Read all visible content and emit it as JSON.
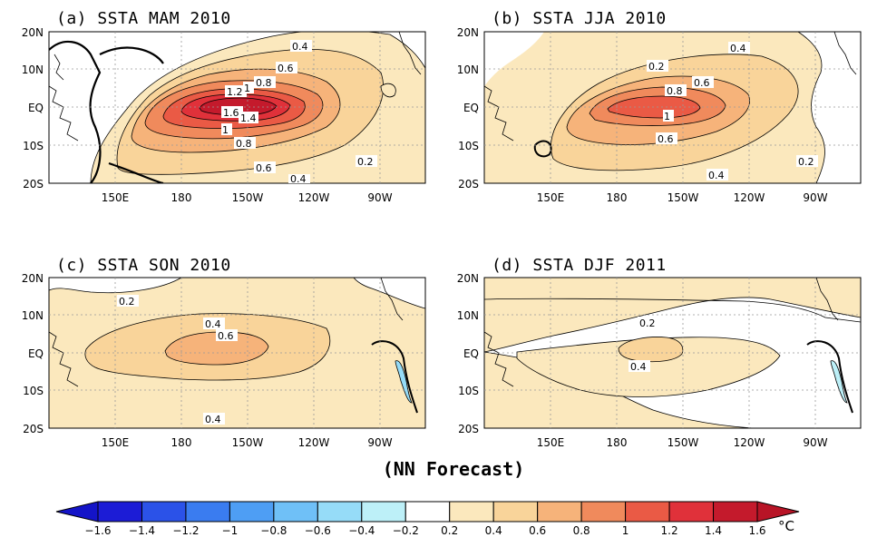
{
  "figure": {
    "caption": "(NN Forecast)",
    "unit": "°C"
  },
  "axes": {
    "lat_ticks": [
      "20N",
      "10N",
      "EQ",
      "10S",
      "20S"
    ],
    "lon_ticks": [
      "150E",
      "180",
      "150W",
      "120W",
      "90W"
    ],
    "lat_range": [
      -20,
      20
    ],
    "lon_range": [
      120,
      290
    ]
  },
  "panels": [
    {
      "title": "(a) SSTA  MAM 2010",
      "peak_value": 1.6,
      "contour_labels": [
        "0.4",
        "0.6",
        "0.8",
        "1.2",
        "1",
        "1.6",
        "1.4",
        "1",
        "0.8",
        "0.6",
        "0.4",
        "0.2"
      ]
    },
    {
      "title": "(b) SSTA  JJA 2010",
      "peak_value": 1.0,
      "contour_labels": [
        "0.4",
        "0.2",
        "0.6",
        "0.8",
        "1",
        "0.6",
        "0.4",
        "0.2"
      ]
    },
    {
      "title": "(c) SSTA  SON 2010",
      "peak_value": 0.6,
      "contour_labels": [
        "0.2",
        "0.4",
        "0.6",
        "0.4"
      ]
    },
    {
      "title": "(d) SSTA  DJF 2011",
      "peak_value": 0.4,
      "contour_labels": [
        "0.2",
        "0.4"
      ]
    }
  ],
  "colorbar": {
    "tick_labels": [
      "-1.6",
      "-1.4",
      "-1.2",
      "-1",
      "-0.8",
      "-0.6",
      "-0.4",
      "-0.2",
      "0.2",
      "0.4",
      "0.6",
      "0.8",
      "1",
      "1.2",
      "1.4",
      "1.6"
    ],
    "colors": [
      "#1c1cd6",
      "#2b52e8",
      "#3a7cf0",
      "#4e9ef4",
      "#6fc0f7",
      "#96dcf8",
      "#bdf0f8",
      "#ffffff",
      "#fbe8bd",
      "#f9d49a",
      "#f6b37a",
      "#f08a5c",
      "#ea5a45",
      "#e0313a",
      "#c41a2c"
    ],
    "end_colors": [
      "#1414c8",
      "#b81426"
    ]
  }
}
